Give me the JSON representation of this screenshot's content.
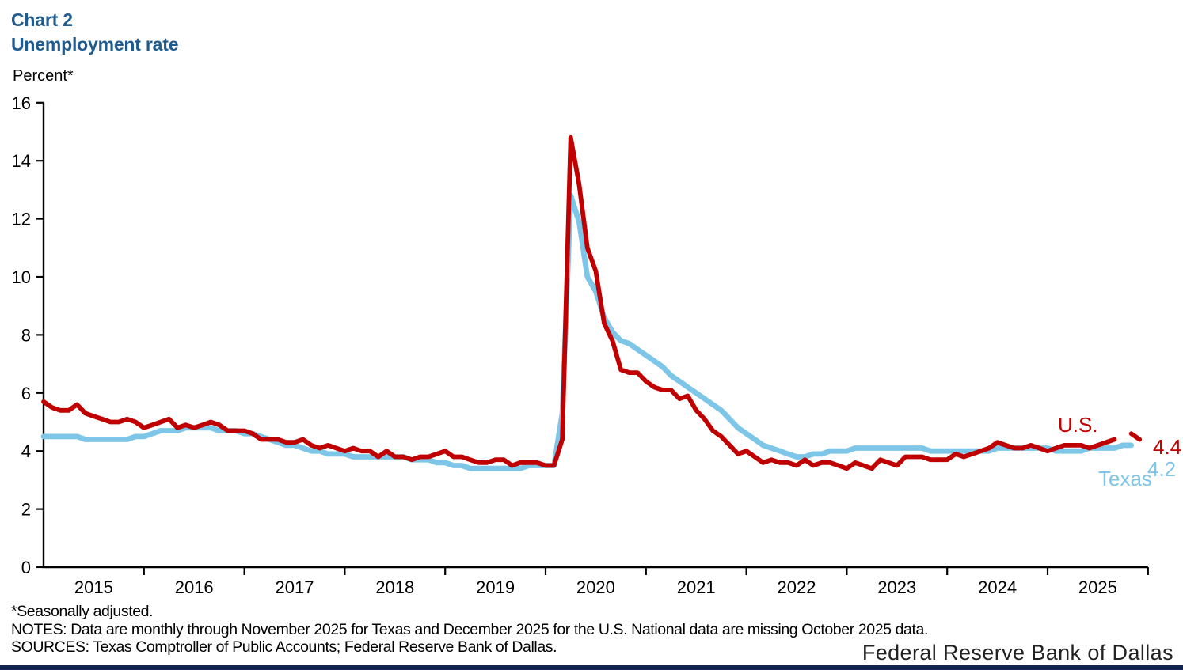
{
  "header": {
    "chart_label": "Chart 2",
    "title": "Unemployment rate"
  },
  "notes": {
    "line1": "*Seasonally adjusted.",
    "line2": "NOTES: Data are monthly through November 2025 for Texas and December 2025 for the U.S. National data are missing October 2025 data.",
    "line3": "SOURCES: Texas Comptroller of Public Accounts; Federal Reserve Bank of Dallas."
  },
  "footer": {
    "org_name": "Federal Reserve Bank of Dallas"
  },
  "colors": {
    "us_red": "#C00000",
    "texas_blue": "#7DC6E8",
    "title_blue": "#1F5B8E",
    "footer_bar_navy": "#13264D",
    "axis_black": "#000000"
  },
  "chart_data": {
    "type": "line",
    "title": "Unemployment rate",
    "ylabel": "Percent*",
    "ylim": [
      0,
      16
    ],
    "ytick_step": 2,
    "grid": false,
    "x_unit": "month",
    "x_start": "2015-01",
    "x_years": [
      2015,
      2016,
      2017,
      2018,
      2019,
      2020,
      2021,
      2022,
      2023,
      2024,
      2025
    ],
    "legend_position": "end-of-line labels",
    "series": [
      {
        "name": "U.S.",
        "end_label": "U.S.",
        "end_value_label": "4.4",
        "last_point": "2025-12",
        "missing_months": [
          "2025-10"
        ],
        "values": [
          5.7,
          5.5,
          5.4,
          5.4,
          5.6,
          5.3,
          5.2,
          5.1,
          5.0,
          5.0,
          5.1,
          5.0,
          4.8,
          4.9,
          5.0,
          5.1,
          4.8,
          4.9,
          4.8,
          4.9,
          5.0,
          4.9,
          4.7,
          4.7,
          4.7,
          4.6,
          4.4,
          4.4,
          4.4,
          4.3,
          4.3,
          4.4,
          4.2,
          4.1,
          4.2,
          4.1,
          4.0,
          4.1,
          4.0,
          4.0,
          3.8,
          4.0,
          3.8,
          3.8,
          3.7,
          3.8,
          3.8,
          3.9,
          4.0,
          3.8,
          3.8,
          3.7,
          3.6,
          3.6,
          3.7,
          3.7,
          3.5,
          3.6,
          3.6,
          3.6,
          3.5,
          3.5,
          4.4,
          14.8,
          13.2,
          11.0,
          10.2,
          8.4,
          7.8,
          6.8,
          6.7,
          6.7,
          6.4,
          6.2,
          6.1,
          6.1,
          5.8,
          5.9,
          5.4,
          5.1,
          4.7,
          4.5,
          4.2,
          3.9,
          4.0,
          3.8,
          3.6,
          3.7,
          3.6,
          3.6,
          3.5,
          3.7,
          3.5,
          3.6,
          3.6,
          3.5,
          3.4,
          3.6,
          3.5,
          3.4,
          3.7,
          3.6,
          3.5,
          3.8,
          3.8,
          3.8,
          3.7,
          3.7,
          3.7,
          3.9,
          3.8,
          3.9,
          4.0,
          4.1,
          4.3,
          4.2,
          4.1,
          4.1,
          4.2,
          4.1,
          4.0,
          4.1,
          4.2,
          4.2,
          4.2,
          4.1,
          4.2,
          4.3,
          4.4,
          null,
          4.6,
          4.4
        ]
      },
      {
        "name": "Texas",
        "end_label": "Texas",
        "end_value_label": "4.2",
        "last_point": "2025-11",
        "missing_months": [],
        "values": [
          4.5,
          4.5,
          4.5,
          4.5,
          4.5,
          4.4,
          4.4,
          4.4,
          4.4,
          4.4,
          4.4,
          4.5,
          4.5,
          4.6,
          4.7,
          4.7,
          4.7,
          4.8,
          4.8,
          4.8,
          4.8,
          4.7,
          4.7,
          4.7,
          4.6,
          4.6,
          4.5,
          4.4,
          4.3,
          4.2,
          4.2,
          4.1,
          4.0,
          4.0,
          3.9,
          3.9,
          3.9,
          3.8,
          3.8,
          3.8,
          3.8,
          3.8,
          3.8,
          3.8,
          3.7,
          3.7,
          3.7,
          3.6,
          3.6,
          3.5,
          3.5,
          3.4,
          3.4,
          3.4,
          3.4,
          3.4,
          3.4,
          3.4,
          3.5,
          3.5,
          3.5,
          3.5,
          5.3,
          12.8,
          11.9,
          10.0,
          9.5,
          8.6,
          8.1,
          7.8,
          7.7,
          7.5,
          7.3,
          7.1,
          6.9,
          6.6,
          6.4,
          6.2,
          6.0,
          5.8,
          5.6,
          5.4,
          5.1,
          4.8,
          4.6,
          4.4,
          4.2,
          4.1,
          4.0,
          3.9,
          3.8,
          3.8,
          3.9,
          3.9,
          4.0,
          4.0,
          4.0,
          4.1,
          4.1,
          4.1,
          4.1,
          4.1,
          4.1,
          4.1,
          4.1,
          4.1,
          4.0,
          4.0,
          4.0,
          4.0,
          4.0,
          4.0,
          4.0,
          4.0,
          4.1,
          4.1,
          4.1,
          4.1,
          4.1,
          4.1,
          4.1,
          4.0,
          4.0,
          4.0,
          4.0,
          4.1,
          4.1,
          4.1,
          4.1,
          4.2,
          4.2
        ]
      }
    ]
  }
}
